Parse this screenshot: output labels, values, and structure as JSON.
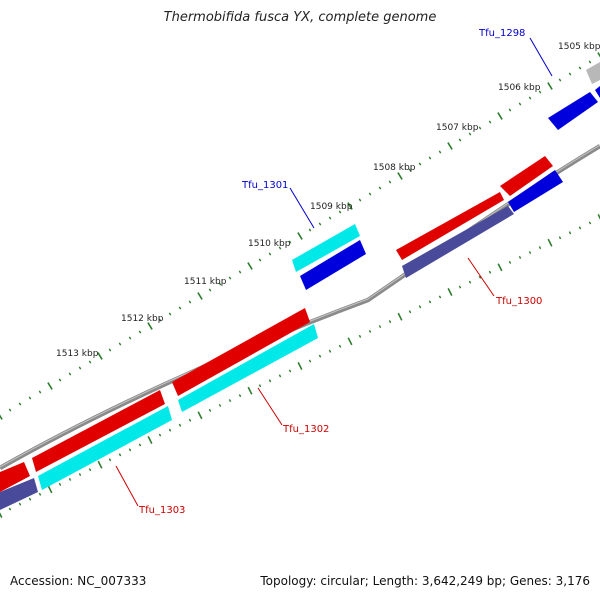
{
  "title": "Thermobifida fusca YX, complete genome",
  "footer": {
    "accession": "Accession: NC_007333",
    "stats": "Topology: circular; Length: 3,642,249 bp; Genes: 3,176"
  },
  "colors": {
    "backbone": "#8a8a8a",
    "tick": "#2e7d2e",
    "gene_red": "#e00000",
    "gene_cyan": "#00e8e8",
    "gene_blue": "#0000dd",
    "gene_navy": "#4a4a9a",
    "gene_gray": "#b8b8b8",
    "label_red": "#cc0000",
    "label_blue": "#0000cc"
  },
  "scale_labels": [
    "1505 kbp",
    "1506 kbp",
    "1507 kbp",
    "1508 kbp",
    "1509 kbp",
    "1510 kbp",
    "1511 kbp",
    "1512 kbp",
    "1513 kbp"
  ],
  "gene_labels": {
    "tfu_1298": "Tfu_1298",
    "tfu_1300": "Tfu_1300",
    "tfu_1301": "Tfu_1301",
    "tfu_1302": "Tfu_1302",
    "tfu_1303": "Tfu_1303"
  }
}
